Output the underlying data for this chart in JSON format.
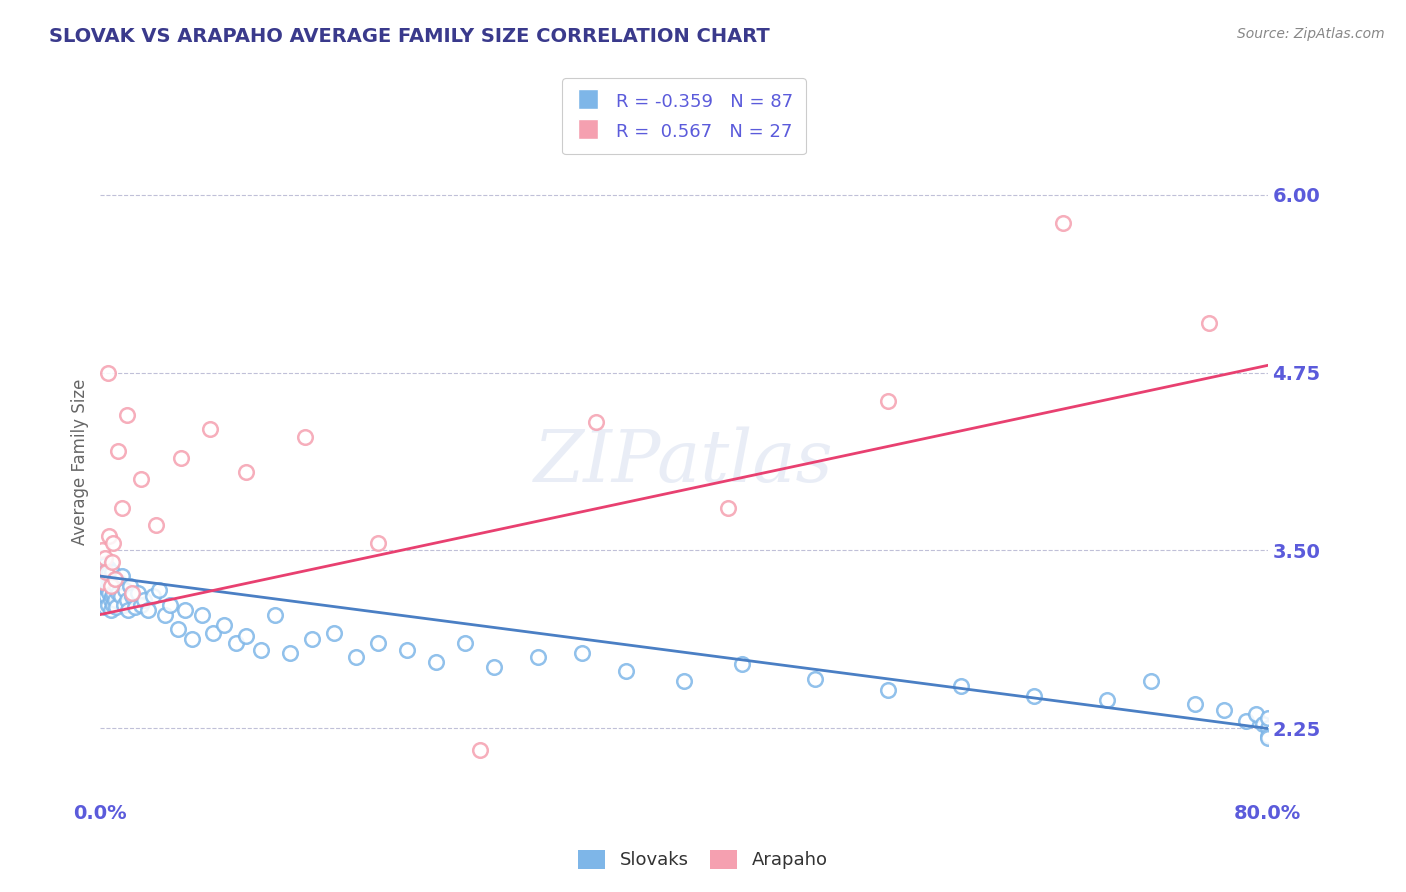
{
  "title": "SLOVAK VS ARAPAHO AVERAGE FAMILY SIZE CORRELATION CHART",
  "source": "Source: ZipAtlas.com",
  "ylabel": "Average Family Size",
  "yticks": [
    2.25,
    3.5,
    4.75,
    6.0
  ],
  "xlim": [
    0.0,
    0.8
  ],
  "ylim": [
    1.75,
    6.5
  ],
  "title_color": "#3a3a8c",
  "axis_color": "#5b5bdb",
  "watermark_text": "ZIPatlas",
  "legend_r_slovak": "-0.359",
  "legend_n_slovak": "87",
  "legend_r_arapaho": "0.567",
  "legend_n_arapaho": "27",
  "slovak_edge_color": "#7eb6e8",
  "arapaho_edge_color": "#f5a0b0",
  "slovak_line_color": "#4a7fc4",
  "arapaho_line_color": "#e84070",
  "background_color": "#ffffff",
  "slovak_x": [
    0.001,
    0.001,
    0.002,
    0.002,
    0.003,
    0.003,
    0.003,
    0.004,
    0.004,
    0.004,
    0.005,
    0.005,
    0.005,
    0.006,
    0.006,
    0.006,
    0.007,
    0.007,
    0.007,
    0.008,
    0.008,
    0.008,
    0.009,
    0.009,
    0.009,
    0.01,
    0.01,
    0.011,
    0.011,
    0.012,
    0.013,
    0.014,
    0.015,
    0.016,
    0.017,
    0.018,
    0.019,
    0.02,
    0.022,
    0.024,
    0.026,
    0.028,
    0.03,
    0.033,
    0.036,
    0.04,
    0.044,
    0.048,
    0.053,
    0.058,
    0.063,
    0.07,
    0.077,
    0.085,
    0.093,
    0.1,
    0.11,
    0.12,
    0.13,
    0.145,
    0.16,
    0.175,
    0.19,
    0.21,
    0.23,
    0.25,
    0.27,
    0.3,
    0.33,
    0.36,
    0.4,
    0.44,
    0.49,
    0.54,
    0.59,
    0.64,
    0.69,
    0.72,
    0.75,
    0.77,
    0.785,
    0.792,
    0.797,
    0.8,
    0.8,
    0.8,
    0.8
  ],
  "slovak_y": [
    3.3,
    3.2,
    3.35,
    3.15,
    3.4,
    3.25,
    3.1,
    3.32,
    3.18,
    3.28,
    3.38,
    3.22,
    3.12,
    3.35,
    3.2,
    3.28,
    3.15,
    3.3,
    3.08,
    3.25,
    3.18,
    3.35,
    3.12,
    3.28,
    3.2,
    3.3,
    3.15,
    3.25,
    3.1,
    3.2,
    3.28,
    3.18,
    3.32,
    3.12,
    3.22,
    3.15,
    3.08,
    3.25,
    3.18,
    3.1,
    3.2,
    3.12,
    3.15,
    3.08,
    3.18,
    3.22,
    3.05,
    3.12,
    2.95,
    3.08,
    2.88,
    3.05,
    2.92,
    2.98,
    2.85,
    2.9,
    2.8,
    3.05,
    2.78,
    2.88,
    2.92,
    2.75,
    2.85,
    2.8,
    2.72,
    2.85,
    2.68,
    2.75,
    2.78,
    2.65,
    2.58,
    2.7,
    2.6,
    2.52,
    2.55,
    2.48,
    2.45,
    2.58,
    2.42,
    2.38,
    2.3,
    2.35,
    2.28,
    2.25,
    2.32,
    2.2,
    2.18
  ],
  "arapaho_x": [
    0.001,
    0.002,
    0.003,
    0.004,
    0.005,
    0.006,
    0.007,
    0.008,
    0.009,
    0.01,
    0.012,
    0.015,
    0.018,
    0.022,
    0.028,
    0.038,
    0.055,
    0.075,
    0.1,
    0.14,
    0.19,
    0.26,
    0.34,
    0.43,
    0.54,
    0.66,
    0.76
  ],
  "arapaho_y": [
    3.5,
    3.28,
    3.45,
    3.35,
    4.75,
    3.6,
    3.25,
    3.42,
    3.55,
    3.3,
    4.2,
    3.8,
    4.45,
    3.2,
    4.0,
    3.68,
    4.15,
    4.35,
    4.05,
    4.3,
    3.55,
    2.1,
    4.4,
    3.8,
    4.55,
    5.8,
    5.1
  ],
  "dpi": 100,
  "figsize": [
    14.06,
    8.92
  ]
}
